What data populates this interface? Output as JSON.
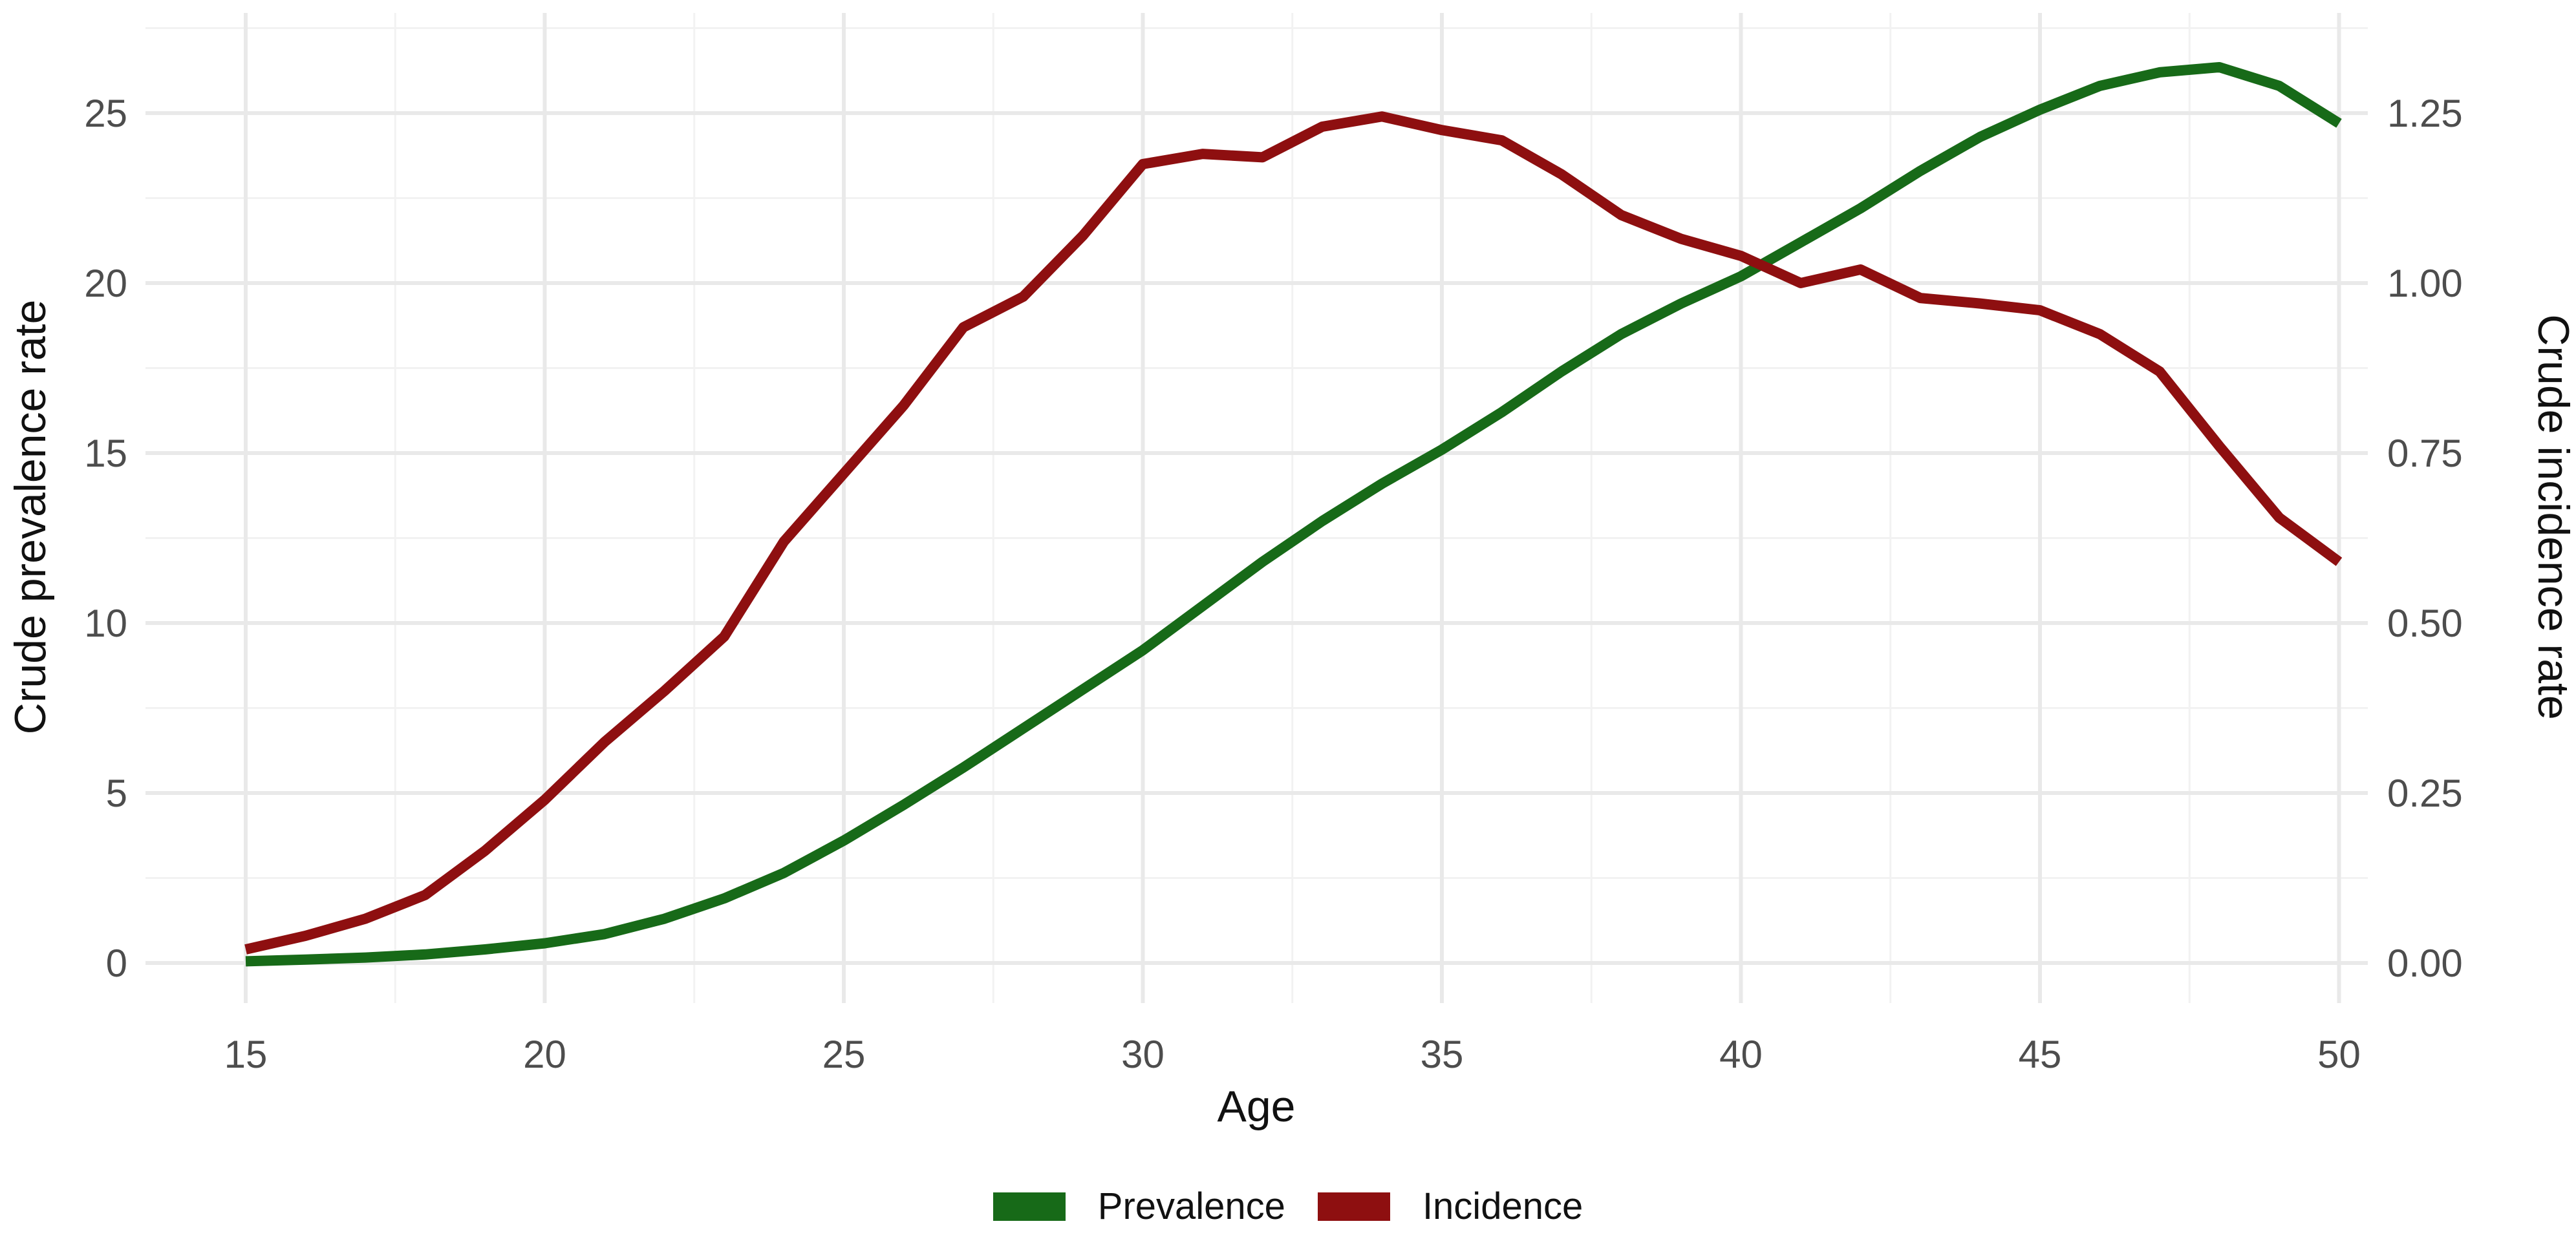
{
  "chart_data": {
    "type": "line",
    "title": "",
    "xlabel": "Age",
    "ylabel_left": "Crude prevalence rate",
    "ylabel_right": "Crude incidence rate",
    "grid": "on",
    "legend_position": "bottom-center",
    "xlim": [
      13.5,
      50.7
    ],
    "ylim_left": [
      0,
      27.5
    ],
    "ylim_right": [
      0,
      1.375
    ],
    "x_ticks": [
      15,
      20,
      25,
      30,
      35,
      40,
      45,
      50
    ],
    "y_left_ticks": [
      0,
      5,
      10,
      15,
      20,
      25
    ],
    "y_right_ticks": [
      {
        "label": "0.00",
        "value": 0.0
      },
      {
        "label": "0.25",
        "value": 0.25
      },
      {
        "label": "0.50",
        "value": 0.5
      },
      {
        "label": "0.75",
        "value": 0.75
      },
      {
        "label": "1.00",
        "value": 1.0
      },
      {
        "label": "1.25",
        "value": 1.25
      }
    ],
    "x": [
      15,
      16,
      17,
      18,
      19,
      20,
      21,
      22,
      23,
      24,
      25,
      26,
      27,
      28,
      29,
      30,
      31,
      32,
      33,
      34,
      35,
      36,
      37,
      38,
      39,
      40,
      41,
      42,
      43,
      44,
      45,
      46,
      47,
      48,
      49,
      50
    ],
    "series": [
      {
        "name": "Prevalence",
        "axis": "left",
        "color": "#176a18",
        "values": [
          0.05,
          0.1,
          0.16,
          0.25,
          0.4,
          0.58,
          0.85,
          1.3,
          1.9,
          2.65,
          3.6,
          4.65,
          5.75,
          6.9,
          8.05,
          9.2,
          10.5,
          11.8,
          13.0,
          14.1,
          15.1,
          16.2,
          17.4,
          18.5,
          19.4,
          20.2,
          21.2,
          22.2,
          23.3,
          24.3,
          25.1,
          25.8,
          26.2,
          26.35,
          25.8,
          24.7
        ]
      },
      {
        "name": "Incidence",
        "axis": "right",
        "color": "#8e0f10",
        "values": [
          0.02,
          0.04,
          0.065,
          0.1,
          0.165,
          0.24,
          0.325,
          0.4,
          0.48,
          0.62,
          0.72,
          0.82,
          0.935,
          0.98,
          1.07,
          1.175,
          1.19,
          1.185,
          1.23,
          1.245,
          1.225,
          1.21,
          1.16,
          1.1,
          1.065,
          1.04,
          1.0,
          1.02,
          0.978,
          0.97,
          0.96,
          0.925,
          0.87,
          0.76,
          0.655,
          0.59
        ]
      }
    ]
  },
  "colors": {
    "background": "#ffffff",
    "grid_major": "#e9e9e9",
    "grid_minor": "#f2f2f2",
    "tick_text": "#4d4d4d",
    "axis_title_text": "#111111",
    "prevalence": "#176a18",
    "incidence": "#8e0f10"
  },
  "legend": {
    "items": [
      {
        "label": "Prevalence",
        "color": "#176a18"
      },
      {
        "label": "Incidence",
        "color": "#8e0f10"
      }
    ]
  }
}
